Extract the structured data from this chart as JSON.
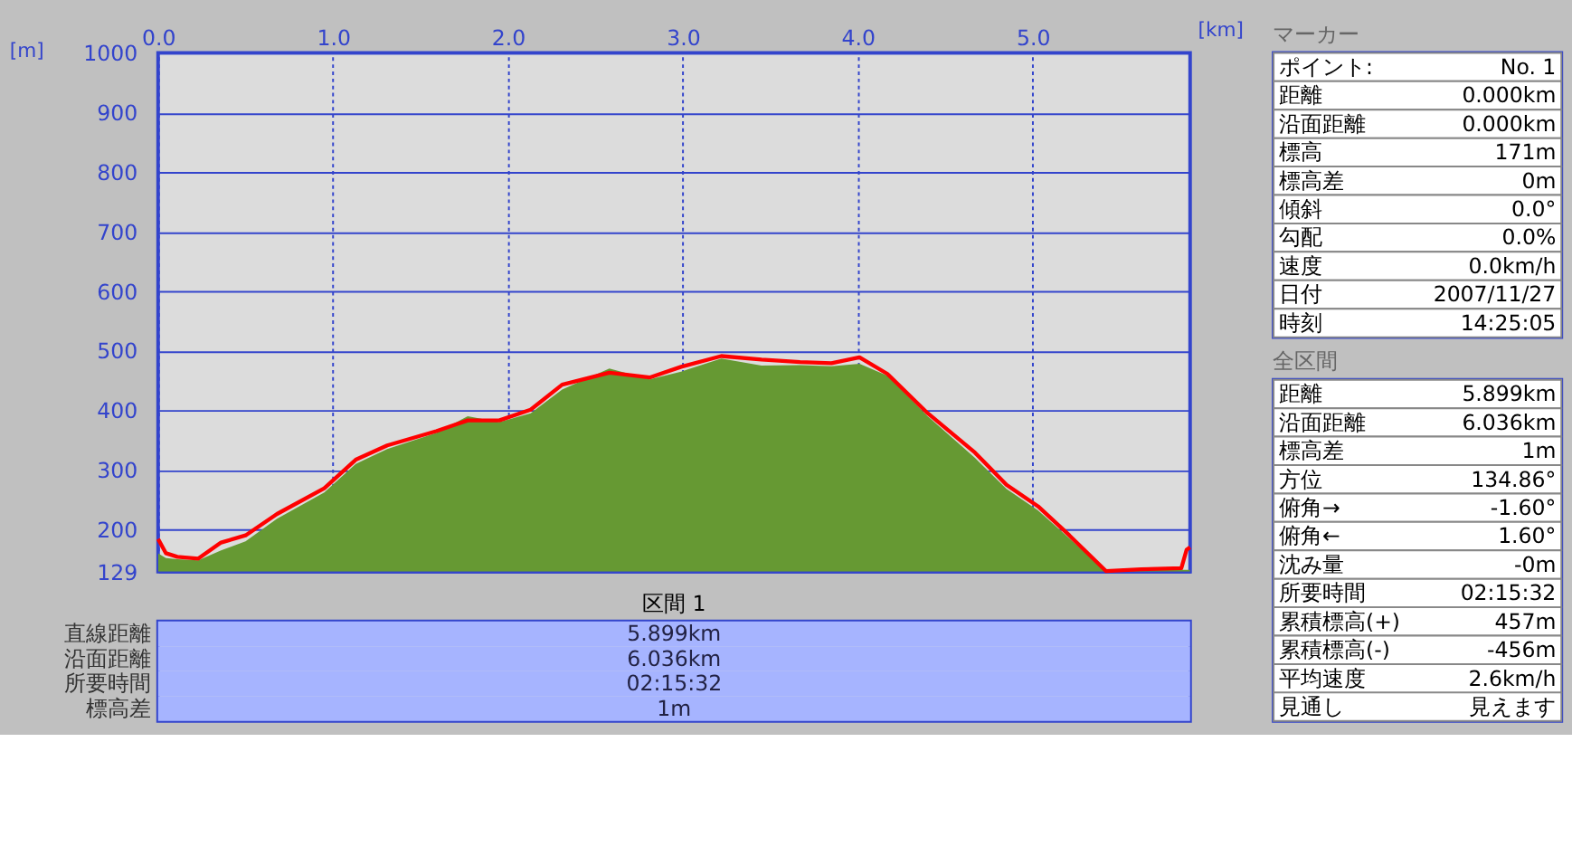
{
  "chart_data": [
    {
      "type": "area",
      "xlabel": "[km]",
      "ylabel": "[m]",
      "xlim": [
        0,
        5.9
      ],
      "xticks": [
        {
          "value": 0,
          "label": "0.0"
        },
        {
          "value": 1,
          "label": "1.0"
        },
        {
          "value": 2,
          "label": "2.0"
        },
        {
          "value": 3,
          "label": "3.0"
        },
        {
          "value": 4,
          "label": "4.0"
        },
        {
          "value": 5,
          "label": "5.0"
        }
      ],
      "ylim": [
        129,
        1000
      ],
      "yticks": [
        129,
        200,
        300,
        400,
        500,
        600,
        700,
        800,
        900,
        1000
      ],
      "grid": true,
      "legend": false,
      "x": [
        0,
        0.045,
        0.11,
        0.23,
        0.36,
        0.5,
        0.68,
        0.95,
        1.13,
        1.31,
        1.59,
        1.77,
        1.95,
        2.13,
        2.31,
        2.58,
        2.81,
        2.99,
        3.22,
        3.45,
        3.67,
        3.85,
        4.01,
        4.17,
        4.4,
        4.67,
        4.85,
        5.03,
        5.21,
        5.42,
        5.62,
        5.85,
        5.88,
        5.9
      ],
      "series": [
        {
          "type": "area",
          "color": "#669933",
          "values": [
            160,
            152,
            150,
            148,
            165,
            180,
            218,
            262,
            310,
            335,
            362,
            390,
            380,
            395,
            435,
            470,
            452,
            465,
            487,
            475,
            476,
            474,
            478,
            458,
            390,
            320,
            268,
            232,
            185,
            129,
            135,
            132,
            132,
            132
          ]
        },
        {
          "type": "line",
          "color": "#ff0000",
          "values": [
            184,
            160,
            154,
            151,
            178,
            190,
            226,
            269,
            317,
            341,
            365,
            383,
            383,
            401,
            443,
            463,
            455,
            473,
            491,
            485,
            481,
            479,
            489,
            461,
            395,
            329,
            275,
            239,
            190,
            130,
            133,
            135,
            166,
            170
          ]
        }
      ]
    },
    {
      "type": "other",
      "annotations": [
        "区間 1",
        "直線距離",
        "5.899km",
        "沿面距離",
        "6.036km",
        "所要時間",
        "02:15:32",
        "標高差",
        "1m"
      ]
    },
    {
      "type": "other",
      "annotations": [
        "マーカー",
        "ポイント:",
        "No. 1",
        "距離",
        "0.000km",
        "沿面距離",
        "0.000km",
        "標高",
        "171m",
        "標高差",
        "0m",
        "傾斜",
        "0.0°",
        "勾配",
        "0.0%",
        "速度",
        "0.0km/h",
        "日付",
        "2007/11/27",
        "時刻",
        "14:25:05"
      ]
    },
    {
      "type": "other",
      "annotations": [
        "全区間",
        "距離",
        "5.899km",
        "沿面距離",
        "6.036km",
        "標高差",
        "1m",
        "方位",
        "134.86°",
        "俯角→",
        "-1.60°",
        "俯角←",
        "1.60°",
        "沈み量",
        "-0m",
        "所要時間",
        "02:15:32",
        "累積標高(+)",
        "457m",
        "累積標高(-)",
        "-456m",
        "平均速度",
        "2.6km/h",
        "見通し",
        "見えます"
      ]
    }
  ]
}
